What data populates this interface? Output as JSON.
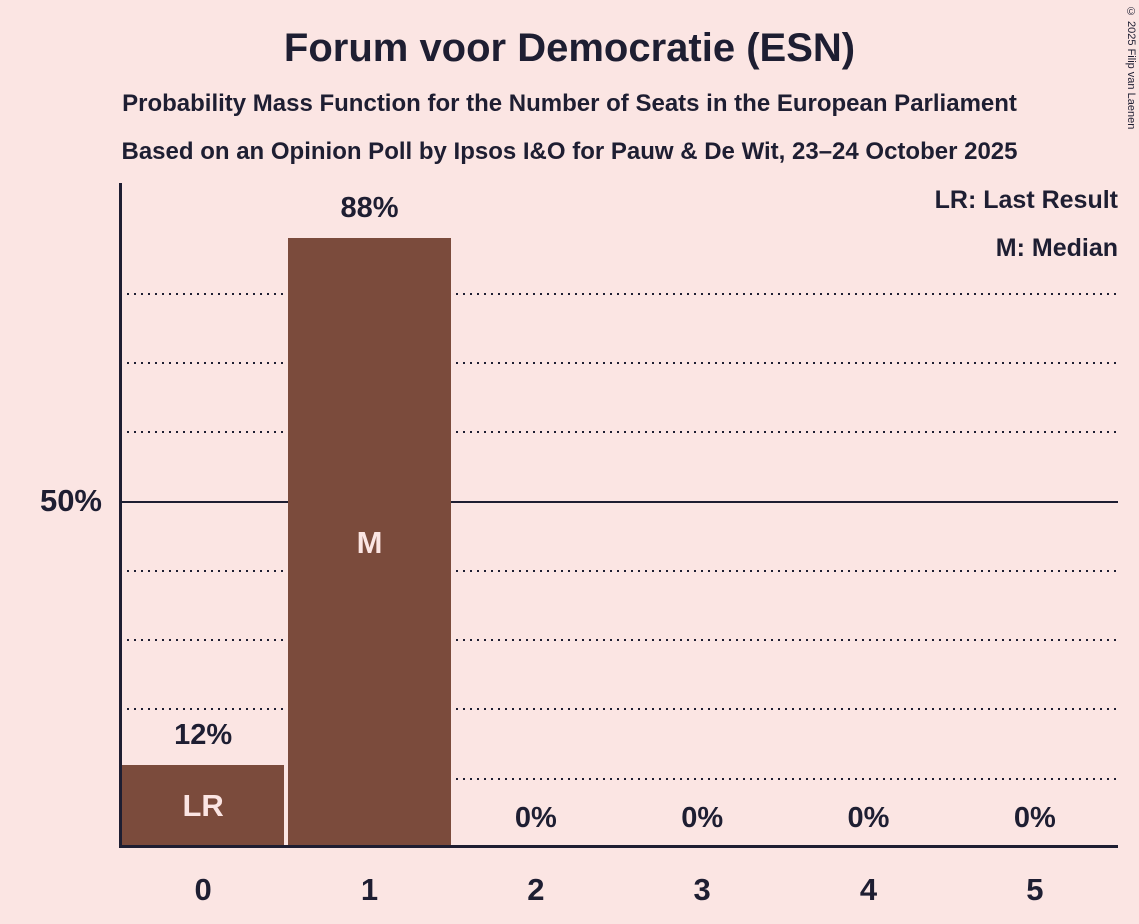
{
  "header": {
    "title": "Forum voor Democratie (ESN)",
    "subtitle1": "Probability Mass Function for the Number of Seats in the European Parliament",
    "subtitle2": "Based on an Opinion Poll by Ipsos I&O for Pauw & De Wit, 23–24 October 2025"
  },
  "legend": {
    "lr": "LR: Last Result",
    "m": "M: Median"
  },
  "copyright": "© 2025 Filip van Laenen",
  "chart_data": {
    "type": "bar",
    "title": "Forum voor Democratie (ESN)",
    "categories": [
      "0",
      "1",
      "2",
      "3",
      "4",
      "5"
    ],
    "values": [
      12,
      88,
      0,
      0,
      0,
      0
    ],
    "value_labels": [
      "12%",
      "88%",
      "0%",
      "0%",
      "0%",
      "0%"
    ],
    "annotations": [
      {
        "category_index": 0,
        "label": "LR",
        "meaning": "Last Result"
      },
      {
        "category_index": 1,
        "label": "M",
        "meaning": "Median"
      }
    ],
    "xlabel": "",
    "ylabel": "",
    "ylim": [
      0,
      100
    ],
    "y_axis_label": "50%",
    "gridlines": {
      "values": [
        10,
        20,
        30,
        40,
        60,
        70,
        80
      ],
      "style": "dotted",
      "solid_value": 50
    },
    "legend_position": "top-right"
  },
  "colors": {
    "background": "#fbe5e3",
    "bar": "#7b4b3c",
    "text": "#1e1e32",
    "bar_label": "#fbe5e3"
  }
}
